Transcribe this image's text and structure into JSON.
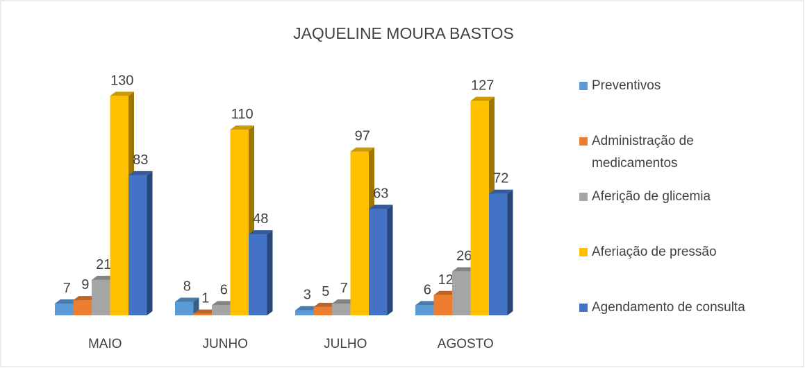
{
  "chart_data": {
    "type": "bar3d",
    "title": "JAQUELINE MOURA BASTOS",
    "categories": [
      "MAIO",
      "JUNHO",
      "JULHO",
      "AGOSTO"
    ],
    "series": [
      {
        "name": "Preventivos",
        "color": "#5b9bd5",
        "values": [
          7,
          8,
          3,
          6
        ]
      },
      {
        "name": "Administração de medicamentos",
        "color": "#ed7d31",
        "values": [
          9,
          1,
          5,
          12
        ]
      },
      {
        "name": "Aferição de glicemia",
        "color": "#a5a5a5",
        "values": [
          21,
          6,
          7,
          26
        ]
      },
      {
        "name": "Aferiação de pressão",
        "color": "#ffc000",
        "values": [
          130,
          110,
          97,
          127
        ]
      },
      {
        "name": "Agendamento de consulta",
        "color": "#4472c4",
        "values": [
          83,
          48,
          63,
          72
        ]
      }
    ],
    "ylim": [
      0,
      140
    ],
    "legend": "right"
  }
}
